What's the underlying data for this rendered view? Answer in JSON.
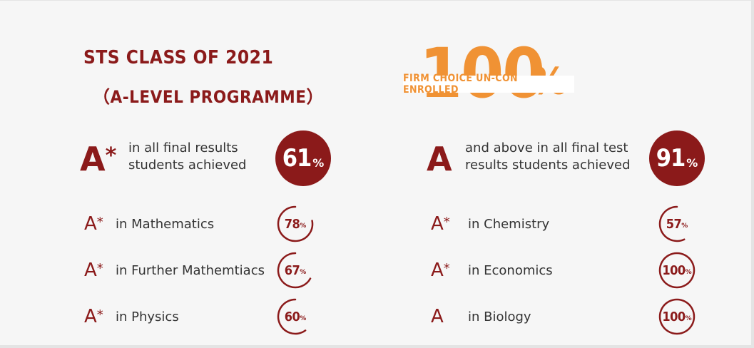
{
  "header": {
    "title_line1": "STS CLASS OF 2021",
    "title_line2": "（A-LEVEL PROGRAMME）"
  },
  "highlight": {
    "big_number": "100",
    "percent_sign": "%",
    "banner_text": "FIRM CHOICE UN-CON ENROLLED"
  },
  "colors": {
    "brand": "#8b1a1a",
    "accent": "#f09234"
  },
  "left": {
    "lead": {
      "grade": "A",
      "grade_sup": "*",
      "line1": "in all final results",
      "line2": "students achieved",
      "value": "61",
      "unit": "%"
    },
    "rows": [
      {
        "grade": "A",
        "sup": "*",
        "subject": "in Mathematics",
        "value": "78",
        "unit": "%",
        "fraction": 0.78
      },
      {
        "grade": "A",
        "sup": "*",
        "subject": "in Further Mathemtiacs",
        "value": "67",
        "unit": "%",
        "fraction": 0.67
      },
      {
        "grade": "A",
        "sup": "*",
        "subject": "in Physics",
        "value": "60",
        "unit": "%",
        "fraction": 0.6
      }
    ]
  },
  "right": {
    "lead": {
      "grade": "A",
      "line1": "and above in all final test",
      "line2": "results students achieved",
      "value": "91",
      "unit": "%"
    },
    "rows": [
      {
        "grade": "A",
        "sup": "*",
        "subject": "in Chemistry",
        "value": "57",
        "unit": "%",
        "fraction": 0.57
      },
      {
        "grade": "A",
        "sup": "*",
        "subject": "in Economics",
        "value": "100",
        "unit": "%",
        "fraction": 1.0
      },
      {
        "grade": "A",
        "sup": "",
        "subject": "in Biology",
        "value": "100",
        "unit": "%",
        "fraction": 1.0
      }
    ]
  }
}
